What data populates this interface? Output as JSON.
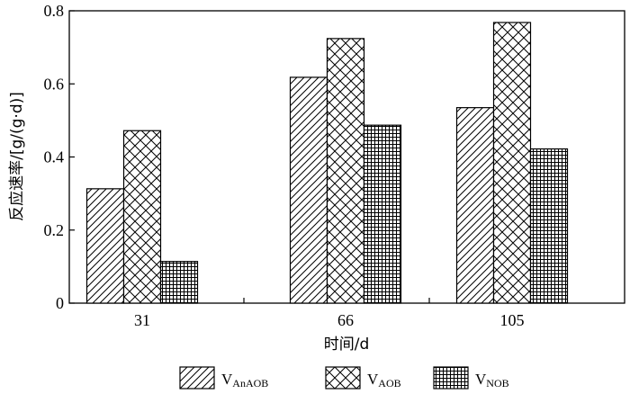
{
  "chart_data": {
    "type": "bar",
    "title": "",
    "xlabel": "时间/d",
    "ylabel": "反应速率/[g/(g·d)]",
    "categories": [
      "31",
      "66",
      "105"
    ],
    "ylim": [
      0,
      0.8
    ],
    "yticks": [
      "0",
      "0.2",
      "0.4",
      "0.6",
      "0.8"
    ],
    "grid": false,
    "legend_position": "bottom",
    "series": [
      {
        "name": "V",
        "subscript": "AnAOB",
        "pattern": "diagonal",
        "values": [
          0.313,
          0.618,
          0.535
        ]
      },
      {
        "name": "V",
        "subscript": "AOB",
        "pattern": "crosshatch",
        "values": [
          0.472,
          0.724,
          0.768
        ]
      },
      {
        "name": "V",
        "subscript": "NOB",
        "pattern": "grid",
        "values": [
          0.114,
          0.487,
          0.422
        ]
      }
    ]
  }
}
